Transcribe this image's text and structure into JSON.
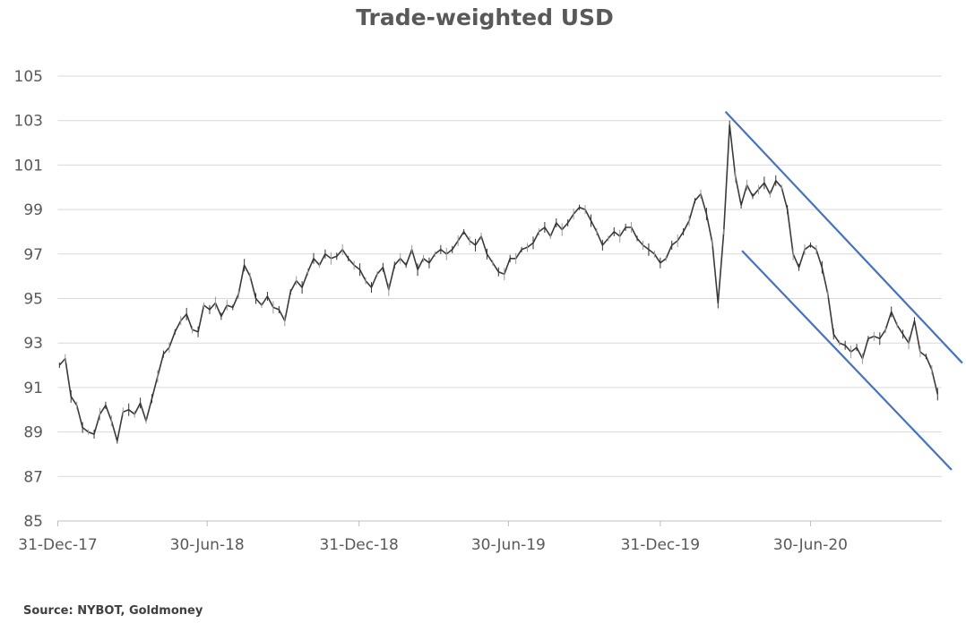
{
  "chart_data": {
    "type": "line",
    "title": "Trade-weighted USD",
    "xlabel": "",
    "ylabel": "",
    "ylim": [
      85,
      105
    ],
    "yticks": [
      "85",
      "87",
      "89",
      "91",
      "93",
      "95",
      "97",
      "99",
      "101",
      "103",
      "105"
    ],
    "xticks": [
      {
        "label": "31-Dec-17",
        "date": "2017-12-31"
      },
      {
        "label": "30-Jun-18",
        "date": "2018-06-30"
      },
      {
        "label": "31-Dec-18",
        "date": "2018-12-31"
      },
      {
        "label": "30-Jun-19",
        "date": "2019-06-30"
      },
      {
        "label": "31-Dec-19",
        "date": "2019-12-31"
      },
      {
        "label": "30-Jun-20",
        "date": "2020-06-30"
      }
    ],
    "grid": true,
    "series": [
      {
        "name": "Trade-weighted USD",
        "color": "#3a3a3a",
        "start": "2017-12-31",
        "interval_days": 7,
        "values": [
          92.0,
          92.3,
          90.6,
          90.2,
          89.2,
          89.0,
          88.9,
          89.8,
          90.2,
          89.5,
          88.6,
          89.9,
          90.0,
          89.8,
          90.3,
          89.5,
          90.5,
          91.5,
          92.5,
          92.8,
          93.5,
          94.0,
          94.3,
          93.6,
          93.5,
          94.7,
          94.5,
          94.8,
          94.2,
          94.7,
          94.6,
          95.2,
          96.5,
          96.0,
          95.0,
          94.7,
          95.1,
          94.6,
          94.5,
          94.0,
          95.3,
          95.8,
          95.5,
          96.2,
          96.8,
          96.5,
          97.0,
          96.8,
          96.9,
          97.2,
          96.8,
          96.5,
          96.3,
          95.8,
          95.5,
          96.1,
          96.4,
          95.4,
          96.5,
          96.8,
          96.5,
          97.2,
          96.3,
          96.8,
          96.6,
          97.0,
          97.2,
          97.0,
          97.2,
          97.6,
          98.0,
          97.6,
          97.4,
          97.8,
          97.0,
          96.6,
          96.2,
          96.1,
          96.8,
          96.8,
          97.2,
          97.3,
          97.5,
          98.0,
          98.2,
          97.8,
          98.4,
          98.1,
          98.4,
          98.8,
          99.1,
          99.0,
          98.5,
          98.0,
          97.4,
          97.7,
          98.0,
          97.8,
          98.2,
          98.2,
          97.7,
          97.4,
          97.2,
          97.0,
          96.6,
          96.8,
          97.4,
          97.6,
          98.0,
          98.5,
          99.4,
          99.7,
          98.8,
          97.5,
          94.8,
          98.0,
          102.8,
          100.5,
          99.2,
          100.1,
          99.6,
          99.9,
          100.2,
          99.7,
          100.3,
          100.0,
          99.0,
          97.0,
          96.4,
          97.2,
          97.4,
          97.2,
          96.4,
          95.2,
          93.4,
          93.0,
          92.9,
          92.6,
          92.8,
          92.3,
          93.2,
          93.3,
          93.2,
          93.6,
          94.4,
          93.8,
          93.4,
          93.0,
          94.0,
          92.6,
          92.4,
          91.8,
          90.7
        ]
      }
    ],
    "trend_lines": [
      {
        "name": "upper-channel",
        "color": "#4472C4",
        "from": {
          "date": "2020-03-19",
          "value": 103.4
        },
        "to": {
          "date": "2020-12-31",
          "value": 92.1
        }
      },
      {
        "name": "lower-channel",
        "color": "#4472C4",
        "from": {
          "date": "2020-04-08",
          "value": 97.15
        },
        "to": {
          "date": "2020-12-18",
          "value": 87.3
        }
      }
    ],
    "source": "Source: NYBOT, Goldmoney"
  }
}
